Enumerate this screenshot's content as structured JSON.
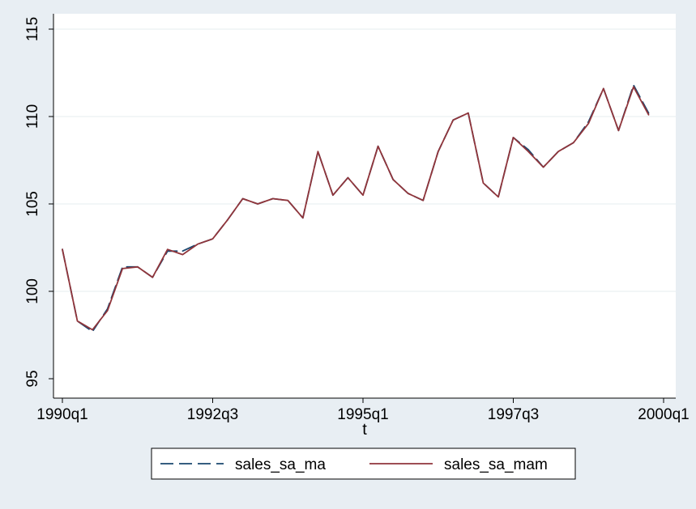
{
  "chart_data": {
    "type": "line",
    "title": "",
    "xlabel": "t",
    "ylabel": "",
    "ylim": [
      95,
      115
    ],
    "y_ticks": [
      95,
      100,
      105,
      110,
      115
    ],
    "x_ticks": [
      {
        "label": "1990q1",
        "index": 0
      },
      {
        "label": "1992q3",
        "index": 10
      },
      {
        "label": "1995q1",
        "index": 20
      },
      {
        "label": "1997q3",
        "index": 30
      },
      {
        "label": "2000q1",
        "index": 40
      }
    ],
    "grid": true,
    "legend_position": "bottom",
    "x": [
      "1990q1",
      "1990q2",
      "1990q3",
      "1990q4",
      "1991q1",
      "1991q2",
      "1991q3",
      "1991q4",
      "1992q1",
      "1992q2",
      "1992q3",
      "1992q4",
      "1993q1",
      "1993q2",
      "1993q3",
      "1993q4",
      "1994q1",
      "1994q2",
      "1994q3",
      "1994q4",
      "1995q1",
      "1995q2",
      "1995q3",
      "1995q4",
      "1996q1",
      "1996q2",
      "1996q3",
      "1996q4",
      "1997q1",
      "1997q2",
      "1997q3",
      "1997q4",
      "1998q1",
      "1998q2",
      "1998q3",
      "1998q4",
      "1999q1",
      "1999q2",
      "1999q3",
      "1999q4"
    ],
    "series": [
      {
        "name": "sales_sa_ma",
        "color": "#1a476f",
        "dash": "long-dash",
        "values": [
          102.4,
          98.3,
          97.7,
          99.0,
          101.4,
          101.4,
          100.8,
          102.3,
          102.3,
          102.7,
          103.0,
          104.1,
          105.3,
          105.0,
          105.3,
          105.2,
          104.2,
          108.0,
          105.5,
          106.5,
          105.5,
          108.3,
          106.4,
          105.6,
          105.2,
          108.0,
          109.8,
          110.2,
          106.2,
          105.4,
          108.8,
          108.1,
          107.1,
          108.0,
          108.5,
          109.7,
          111.6,
          109.2,
          111.8,
          110.2
        ]
      },
      {
        "name": "sales_sa_mam",
        "color": "#90353b",
        "dash": "solid",
        "values": [
          102.4,
          98.3,
          97.8,
          98.9,
          101.3,
          101.4,
          100.8,
          102.4,
          102.1,
          102.7,
          103.0,
          104.1,
          105.3,
          105.0,
          105.3,
          105.2,
          104.2,
          108.0,
          105.5,
          106.5,
          105.5,
          108.3,
          106.4,
          105.6,
          105.2,
          108.0,
          109.8,
          110.2,
          106.2,
          105.4,
          108.8,
          108.0,
          107.1,
          108.0,
          108.5,
          109.6,
          111.6,
          109.2,
          111.7,
          110.1
        ]
      }
    ]
  }
}
